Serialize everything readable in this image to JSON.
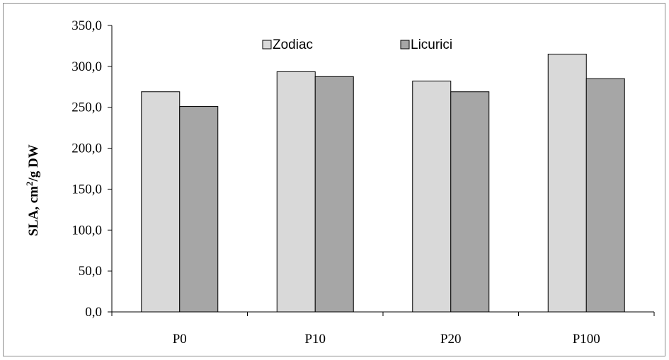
{
  "chart_data": {
    "type": "bar",
    "categories": [
      "P0",
      "P10",
      "P20",
      "P100"
    ],
    "series": [
      {
        "name": "Zodiac",
        "values": [
          269.0,
          293.5,
          282.0,
          315.0
        ],
        "color": "#d9d9d9"
      },
      {
        "name": "Licurici",
        "values": [
          251.0,
          287.5,
          269.0,
          285.0
        ],
        "color": "#a6a6a6"
      }
    ],
    "y_ticks": [
      "0,0",
      "50,0",
      "100,0",
      "150,0",
      "200,0",
      "250,0",
      "300,0",
      "350,0"
    ],
    "ylim": [
      0,
      350
    ],
    "ylabel_main": "SLA, cm",
    "ylabel_sup": "2",
    "ylabel_rest": "/g DW",
    "legend_position": "top",
    "grid": false
  }
}
